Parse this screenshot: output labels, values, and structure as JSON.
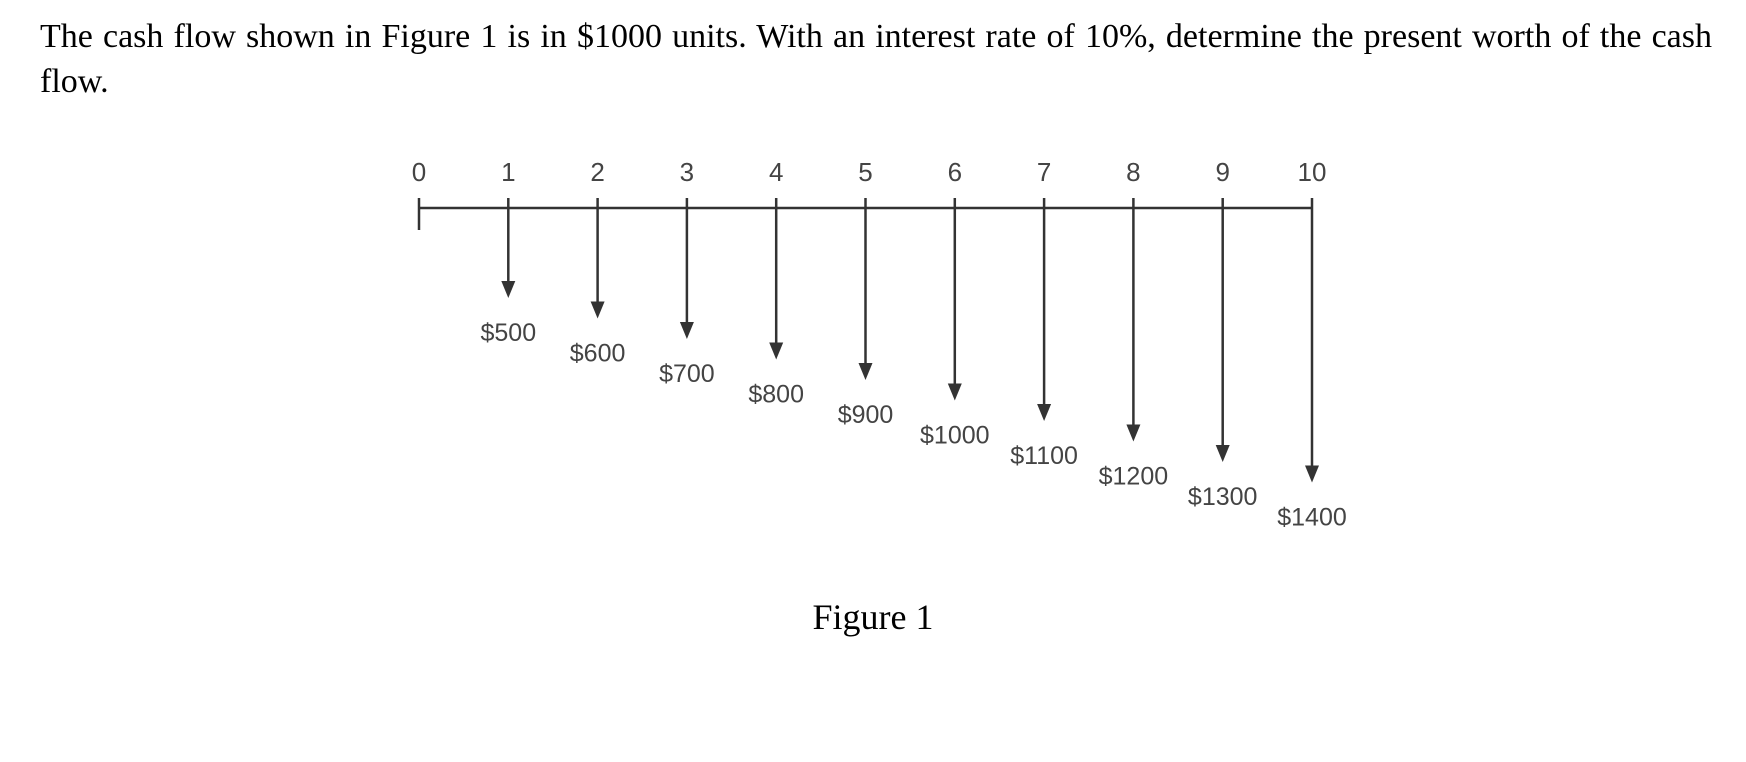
{
  "question": {
    "text": "The cash flow shown in Figure 1 is in $1000 units.  With an interest rate of 10%, determine the present worth of the cash flow."
  },
  "figure": {
    "caption": "Figure 1",
    "periods": [
      "0",
      "1",
      "2",
      "3",
      "4",
      "5",
      "6",
      "7",
      "8",
      "9",
      "10"
    ],
    "cash_flows": [
      {
        "period": 1,
        "label": "$500",
        "value": 500
      },
      {
        "period": 2,
        "label": "$600",
        "value": 600
      },
      {
        "period": 3,
        "label": "$700",
        "value": 700
      },
      {
        "period": 4,
        "label": "$800",
        "value": 800
      },
      {
        "period": 5,
        "label": "$900",
        "value": 900
      },
      {
        "period": 6,
        "label": "$1000",
        "value": 1000
      },
      {
        "period": 7,
        "label": "$1100",
        "value": 1100
      },
      {
        "period": 8,
        "label": "$1200",
        "value": 1200
      },
      {
        "period": 9,
        "label": "$1300",
        "value": 1300
      },
      {
        "period": 10,
        "label": "$1400",
        "value": 1400
      }
    ],
    "direction": "down",
    "line_color": "#333333"
  }
}
